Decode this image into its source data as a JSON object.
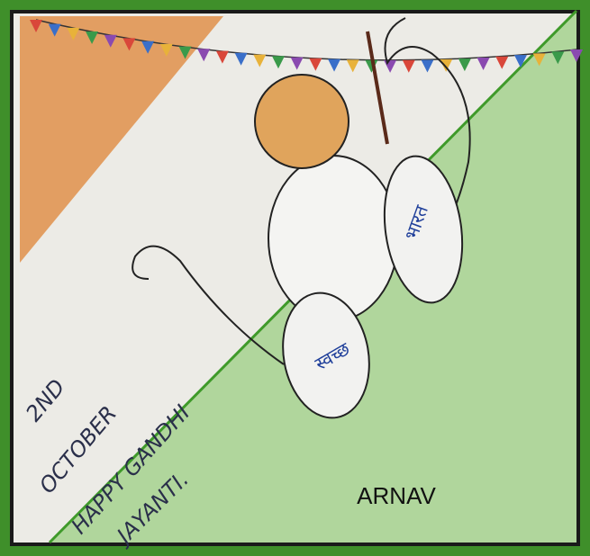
{
  "caption": "ARNAV",
  "drawing": {
    "lines": [
      "2ND",
      "OCTOBER",
      "HAPPY GANDHI",
      "JAYANTI."
    ],
    "hindi": [
      "स्वच्छ",
      "भारत"
    ]
  }
}
